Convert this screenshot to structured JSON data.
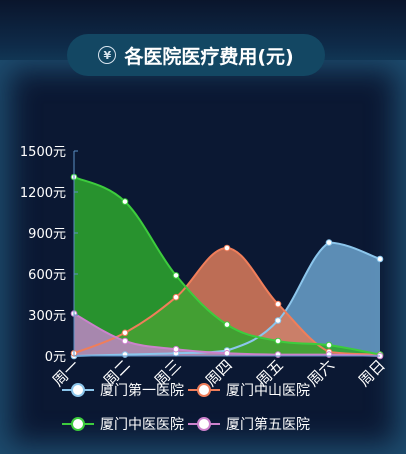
{
  "header": {
    "title": "各医院医疗费用(元)",
    "icon": "yen-icon"
  },
  "chart_data": {
    "type": "area",
    "categories": [
      "周一",
      "周二",
      "周三",
      "周四",
      "周五",
      "周六",
      "周日"
    ],
    "ylim": [
      0,
      1500
    ],
    "y_ticks": [
      "0元",
      "300元",
      "600元",
      "900元",
      "1200元",
      "1500元"
    ],
    "y_tick_values": [
      0,
      300,
      600,
      900,
      1200,
      1500
    ],
    "smooth": true,
    "grid": false,
    "legend_position": "bottom",
    "series": [
      {
        "name": "厦门第一医院",
        "values": [
          0,
          10,
          20,
          40,
          260,
          830,
          710
        ],
        "color": "#8cc6ec",
        "fill": "#6ba2cc"
      },
      {
        "name": "厦门中山医院",
        "values": [
          20,
          170,
          430,
          790,
          380,
          30,
          10
        ],
        "color": "#f07e5a",
        "fill": "#dd7c5c"
      },
      {
        "name": "厦门中医医院",
        "values": [
          1310,
          1130,
          590,
          230,
          110,
          80,
          10
        ],
        "color": "#3dcc3d",
        "fill": "#2ea82e"
      },
      {
        "name": "厦门第五医院",
        "values": [
          310,
          110,
          50,
          20,
          10,
          10,
          0
        ],
        "color": "#cc82cc",
        "fill": "#bd85c4"
      }
    ]
  }
}
